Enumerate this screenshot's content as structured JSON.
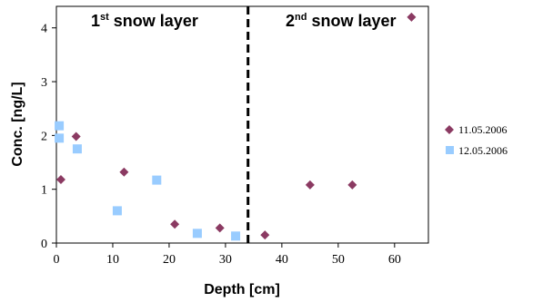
{
  "chart_data": {
    "type": "scatter",
    "xlabel": "Depth [cm]",
    "ylabel": "Conc. [ng/L]",
    "xlim": [
      0,
      66
    ],
    "ylim": [
      0,
      4.4
    ],
    "xticks": [
      0,
      10,
      20,
      30,
      40,
      50,
      60
    ],
    "yticks": [
      0,
      1,
      2,
      3,
      4
    ],
    "grid": false,
    "legend_position": "right",
    "divider_x": 34,
    "annotations": [
      {
        "id": "layer1",
        "prefix": "1",
        "sup": "st",
        "suffix": " snow layer"
      },
      {
        "id": "layer2",
        "prefix": "2",
        "sup": "nd",
        "suffix": " snow layer"
      }
    ],
    "series": [
      {
        "name": "11.05.2006",
        "marker": "diamond",
        "color": "#8B3A62",
        "points": [
          {
            "x": 0.8,
            "y": 1.18
          },
          {
            "x": 3.5,
            "y": 1.98
          },
          {
            "x": 12,
            "y": 1.32
          },
          {
            "x": 21,
            "y": 0.35
          },
          {
            "x": 29,
            "y": 0.28
          },
          {
            "x": 37,
            "y": 0.15
          },
          {
            "x": 45,
            "y": 1.08
          },
          {
            "x": 52.5,
            "y": 1.08
          },
          {
            "x": 63,
            "y": 4.2
          }
        ]
      },
      {
        "name": "12.05.2006",
        "marker": "square",
        "color": "#99CCFF",
        "points": [
          {
            "x": 0.5,
            "y": 2.18
          },
          {
            "x": 0.5,
            "y": 1.95
          },
          {
            "x": 3.7,
            "y": 1.75
          },
          {
            "x": 10.8,
            "y": 0.6
          },
          {
            "x": 17.8,
            "y": 1.17
          },
          {
            "x": 25,
            "y": 0.18
          },
          {
            "x": 31.8,
            "y": 0.13
          }
        ]
      }
    ]
  }
}
